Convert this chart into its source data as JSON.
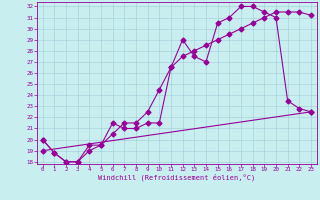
{
  "title": "",
  "xlabel": "Windchill (Refroidissement éolien,°C)",
  "bg_color": "#c8eef0",
  "line_color": "#990099",
  "xlim": [
    -0.5,
    23.5
  ],
  "ylim": [
    17.8,
    32.4
  ],
  "xticks": [
    0,
    1,
    2,
    3,
    4,
    5,
    6,
    7,
    8,
    9,
    10,
    11,
    12,
    13,
    14,
    15,
    16,
    17,
    18,
    19,
    20,
    21,
    22,
    23
  ],
  "yticks": [
    18,
    19,
    20,
    21,
    22,
    23,
    24,
    25,
    26,
    27,
    28,
    29,
    30,
    31,
    32
  ],
  "series1_x": [
    0,
    1,
    2,
    3,
    4,
    5,
    6,
    7,
    8,
    9,
    10,
    11,
    12,
    13,
    14,
    15,
    16,
    17,
    18,
    19,
    20,
    21,
    22,
    23
  ],
  "series1_y": [
    20.0,
    18.8,
    18.0,
    18.0,
    19.0,
    19.5,
    21.5,
    21.0,
    21.0,
    21.5,
    21.5,
    26.5,
    29.0,
    27.5,
    27.0,
    30.5,
    31.0,
    32.0,
    32.0,
    31.5,
    31.0,
    23.5,
    22.8,
    22.5
  ],
  "series2_x": [
    0,
    1,
    2,
    3,
    4,
    5,
    6,
    7,
    8,
    9,
    10,
    11,
    12,
    13,
    14,
    15,
    16,
    17,
    18,
    19,
    20,
    21,
    22,
    23
  ],
  "series2_y": [
    20.0,
    18.8,
    18.0,
    18.0,
    19.5,
    19.5,
    20.5,
    21.5,
    21.5,
    22.5,
    24.5,
    26.5,
    27.5,
    28.0,
    28.5,
    29.0,
    29.5,
    30.0,
    30.5,
    31.0,
    31.5,
    31.5,
    31.5,
    31.2
  ],
  "series3_x": [
    0,
    23
  ],
  "series3_y": [
    19.0,
    22.5
  ]
}
